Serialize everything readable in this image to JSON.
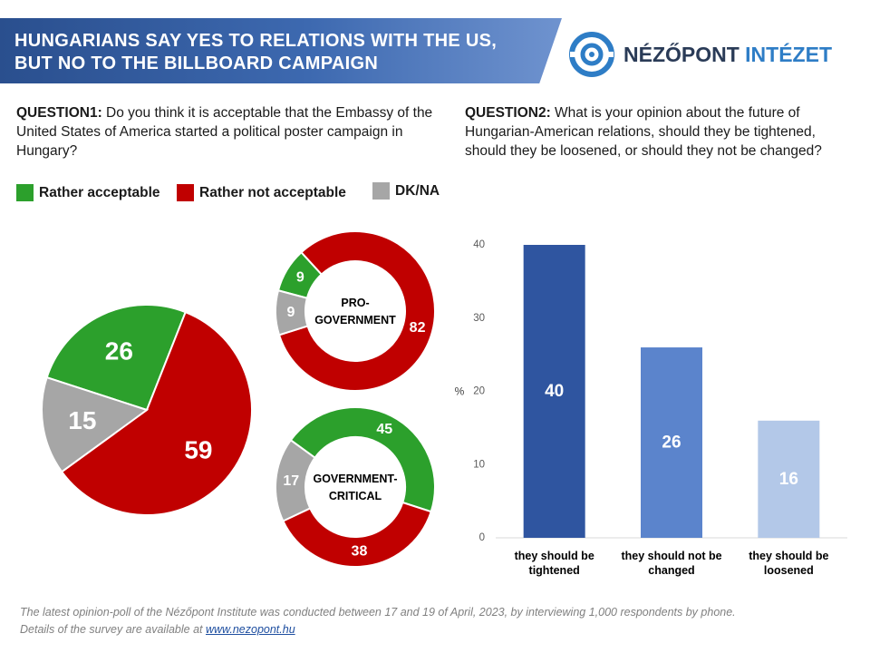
{
  "header": {
    "title_line1": "HUNGARIANS SAY YES TO RELATIONS WITH THE US,",
    "title_line2": "BUT NO TO THE BILLBOARD CAMPAIGN"
  },
  "logo": {
    "word1": "NÉZŐPONT",
    "word2": "INTÉZET"
  },
  "question1": {
    "label": "QUESTION1:",
    "text": " Do you think it is acceptable that the Embassy of the United States of America started a political poster campaign in Hungary?"
  },
  "question2": {
    "label": "QUESTION2:",
    "text": " What is your opinion about the future of Hungarian-American relations, should they be tightened, should they be loosened, or should they not be changed?"
  },
  "legend": {
    "items": [
      {
        "label": "Rather acceptable",
        "color": "#2ca02c"
      },
      {
        "label": "Rather not acceptable",
        "color": "#c00000"
      },
      {
        "label": "DK/NA",
        "color": "#a6a6a6"
      }
    ]
  },
  "footnote": {
    "line1": "The latest opinion-poll of the Nézőpont Institute was conducted between 17 and 19 of April, 2023, by interviewing 1,000 respondents by phone.",
    "line2_prefix": "Details of the survey are available at ",
    "link_text": "www.nezopont.hu"
  },
  "chart_data": [
    {
      "type": "pie",
      "title": "",
      "labels": [
        "Rather acceptable",
        "Rather not acceptable",
        "DK/NA"
      ],
      "values": [
        26,
        59,
        15
      ],
      "colors": [
        "#2ca02c",
        "#c00000",
        "#a6a6a6"
      ]
    },
    {
      "type": "pie",
      "subtype": "donut",
      "title": "PRO-GOVERNMENT",
      "title_line1": "PRO-",
      "title_line2": "GOVERNMENT",
      "labels": [
        "Rather acceptable",
        "Rather not acceptable",
        "DK/NA"
      ],
      "values": [
        9,
        82,
        9
      ],
      "colors": [
        "#2ca02c",
        "#c00000",
        "#a6a6a6"
      ]
    },
    {
      "type": "pie",
      "subtype": "donut",
      "title": "GOVERNMENT-CRITICAL",
      "title_line1": "GOVERNMENT-",
      "title_line2": "CRITICAL",
      "labels": [
        "Rather acceptable",
        "Rather not acceptable",
        "DK/NA"
      ],
      "values": [
        45,
        38,
        17
      ],
      "colors": [
        "#2ca02c",
        "#c00000",
        "#a6a6a6"
      ]
    },
    {
      "type": "bar",
      "categories": [
        [
          "they should be",
          "tightened"
        ],
        [
          "they should not be",
          "changed"
        ],
        [
          "they should be",
          "loosened"
        ]
      ],
      "values": [
        40,
        26,
        16
      ],
      "colors": [
        "#2f55a0",
        "#5b84cc",
        "#b3c8e8"
      ],
      "label_colors": [
        "#ffffff",
        "#ffffff",
        "#ffffff"
      ],
      "ylabel": "%",
      "ylim": [
        0,
        40
      ],
      "yticks": [
        0,
        10,
        20,
        30,
        40
      ],
      "grid": false
    }
  ]
}
